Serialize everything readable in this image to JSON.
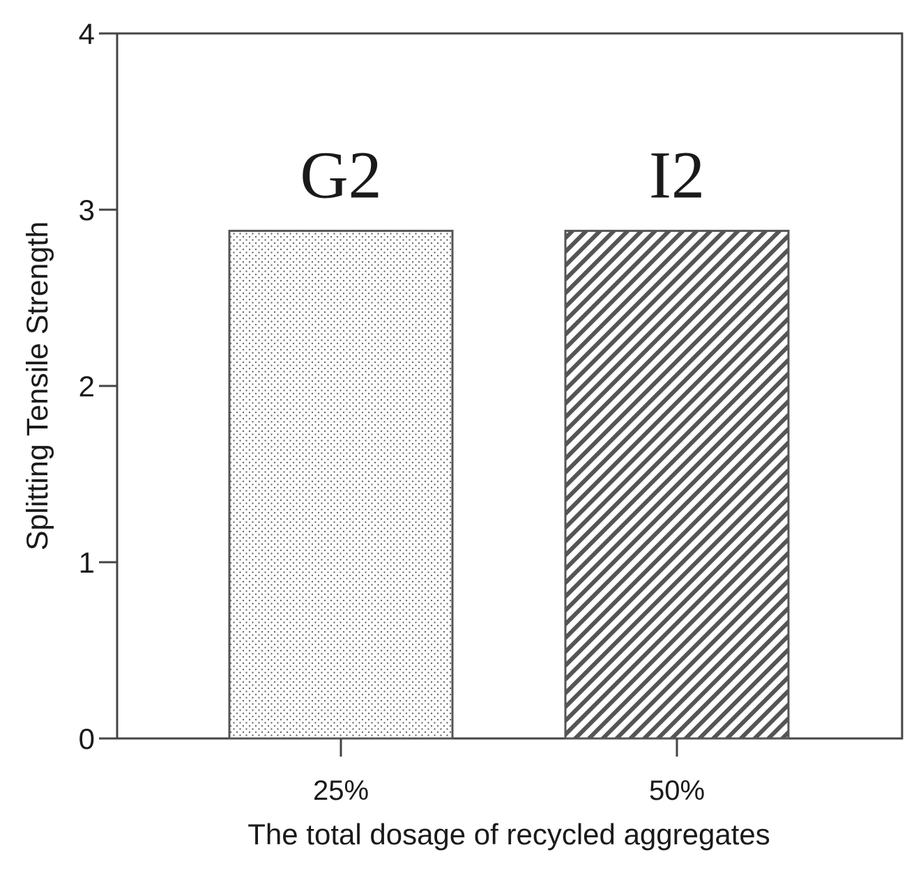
{
  "chart_data": {
    "type": "bar",
    "categories": [
      "25%",
      "50%"
    ],
    "values": [
      2.88,
      2.88
    ],
    "bar_labels": [
      "G2",
      "I2"
    ],
    "bar_patterns": [
      "dots",
      "diagonal-hatch"
    ],
    "ylabel": "Splitting Tensile Strength",
    "xlabel": "The total dosage of recycled aggregates",
    "ylim": [
      0,
      4
    ],
    "yticks": [
      "0",
      "1",
      "2",
      "3",
      "4"
    ],
    "grid": false,
    "legend": "none",
    "colors": {
      "axis": "#444444",
      "bar_stroke": "#555555",
      "pattern": "#555555",
      "background": "#ffffff"
    }
  }
}
